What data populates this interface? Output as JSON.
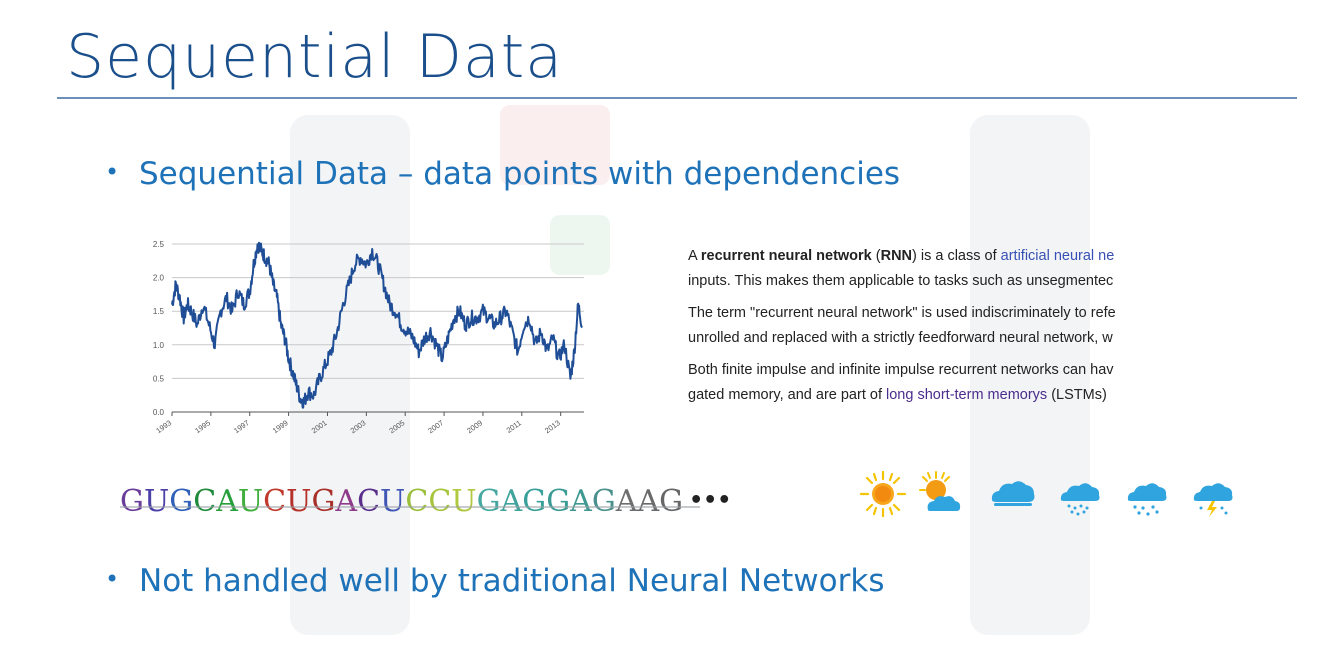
{
  "slide": {
    "title": "Sequential Data",
    "bullets": [
      "Sequential Data – data points with dependencies",
      "Not handled well by traditional Neural Networks"
    ]
  },
  "wiki_excerpt": {
    "p1_l1_pre": "A ",
    "p1_l1_bold1": "recurrent neural network",
    "p1_l1_mid": " (",
    "p1_l1_bold2": "RNN",
    "p1_l1_post": ") is a class of ",
    "p1_l1_link": "artificial neural ne",
    "p1_l2": "inputs. This makes them applicable to tasks such as unsegmentec",
    "p2_l1": "The term \"recurrent neural network\" is used indiscriminately to refe",
    "p2_l2": "unrolled and replaced with a strictly feedforward neural network, w",
    "p3_l1": "Both finite impulse and infinite impulse recurrent networks can hav",
    "p3_l2_pre": "gated memory, and are part of ",
    "p3_l2_link": "long short-term memorys",
    "p3_l2_post": " (LSTMs)"
  },
  "rna_sequence": {
    "text": "GUGCAUCUGACUCCUGAGGAGAAG",
    "ellipsis": "•••",
    "letter_colors": [
      "#6a3d9a",
      "#4b3fa8",
      "#2f5fb8",
      "#1f8a3a",
      "#27a03b",
      "#3fae3a",
      "#c0392b",
      "#b5312a",
      "#a8302a",
      "#8e3a8a",
      "#5a2f8c",
      "#3f56b5",
      "#9bbf3a",
      "#a6c43c",
      "#b0c93f",
      "#44a7a0",
      "#3fa39c",
      "#39a09a",
      "#3b9c96",
      "#3f9892",
      "#4a908c",
      "#6e6e6e",
      "#6a6a6a",
      "#666666"
    ]
  },
  "weather_icons": [
    "sun-icon",
    "partly-sunny-icon",
    "cloud-icon",
    "rain-icon",
    "rain-snow-icon",
    "thunder-rain-icon"
  ],
  "chart_data": {
    "type": "line",
    "title": "",
    "xlabel": "",
    "ylabel": "",
    "x_tick_labels": [
      "1993",
      "1995",
      "1997",
      "1999",
      "2001",
      "2003",
      "2005",
      "2007",
      "2009",
      "2011",
      "2013"
    ],
    "y_tick_labels": [
      "0.0",
      "0.5",
      "1.0",
      "1.5",
      "2.0",
      "2.5"
    ],
    "ylim": [
      0,
      2.5
    ],
    "xlim": [
      1993,
      2014.2
    ],
    "grid": true,
    "series": [
      {
        "x": [
          1993.0,
          1993.2,
          1993.4,
          1993.6,
          1993.8,
          1994.0,
          1994.3,
          1994.6,
          1994.9,
          1995.2,
          1995.5,
          1995.8,
          1996.1,
          1996.4,
          1996.7,
          1997.0,
          1997.2,
          1997.4,
          1997.6,
          1997.8,
          1998.0,
          1998.2,
          1998.4,
          1998.6,
          1998.8,
          1999.0,
          1999.2,
          1999.4,
          1999.6,
          1999.8,
          2000.0,
          2000.3,
          2000.6,
          2000.9,
          2001.2,
          2001.5,
          2001.8,
          2002.1,
          2002.4,
          2002.7,
          2003.0,
          2003.3,
          2003.6,
          2003.9,
          2004.2,
          2004.5,
          2004.8,
          2005.1,
          2005.4,
          2005.7,
          2006.0,
          2006.3,
          2006.6,
          2006.9,
          2007.2,
          2007.5,
          2007.8,
          2008.1,
          2008.4,
          2008.7,
          2009.0,
          2009.3,
          2009.6,
          2009.9,
          2010.2,
          2010.5,
          2010.8,
          2011.1,
          2011.4,
          2011.7,
          2012.0,
          2012.3,
          2012.6,
          2012.9,
          2013.2,
          2013.5,
          2013.7,
          2013.9,
          2014.1
        ],
        "y": [
          1.6,
          1.9,
          1.7,
          1.4,
          1.6,
          1.5,
          1.3,
          1.6,
          1.3,
          1.0,
          1.5,
          1.7,
          1.5,
          1.8,
          1.6,
          1.8,
          2.2,
          2.5,
          2.4,
          2.3,
          2.2,
          1.9,
          1.7,
          1.3,
          1.1,
          0.8,
          0.6,
          0.4,
          0.2,
          0.15,
          0.3,
          0.25,
          0.5,
          0.7,
          0.9,
          1.2,
          1.6,
          1.9,
          2.2,
          2.3,
          2.2,
          2.4,
          2.2,
          1.9,
          1.6,
          1.5,
          1.3,
          1.2,
          1.1,
          0.9,
          1.1,
          1.2,
          1.0,
          0.8,
          1.1,
          1.4,
          1.5,
          1.3,
          1.4,
          1.4,
          1.5,
          1.4,
          1.3,
          1.4,
          1.5,
          1.2,
          0.9,
          1.3,
          1.4,
          1.0,
          1.2,
          0.9,
          1.1,
          0.8,
          1.0,
          0.5,
          0.9,
          1.6,
          1.3
        ]
      }
    ],
    "line_color": "#1f4e96"
  }
}
